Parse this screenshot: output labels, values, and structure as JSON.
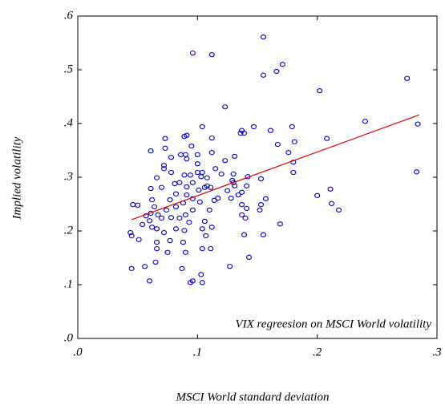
{
  "chart_data": {
    "type": "scatter",
    "annotation": "VIX regreesion on MSCI World volatility",
    "x_label": "MSCI World standard deviation",
    "y_label": "Implied volatility",
    "xlim": [
      0,
      0.3
    ],
    "ylim": [
      0,
      0.6
    ],
    "xticks": [
      {
        "value": 0,
        "label": ".0"
      },
      {
        "value": 0.1,
        "label": ".1"
      },
      {
        "value": 0.2,
        "label": ".2"
      },
      {
        "value": 0.3,
        "label": ".3"
      }
    ],
    "yticks": [
      {
        "value": 0,
        "label": ".0"
      },
      {
        "value": 0.1,
        "label": ".1"
      },
      {
        "value": 0.2,
        "label": ".2"
      },
      {
        "value": 0.3,
        "label": ".3"
      },
      {
        "value": 0.4,
        "label": ".4"
      },
      {
        "value": 0.5,
        "label": ".5"
      },
      {
        "value": 0.6,
        "label": ".6"
      }
    ],
    "grid": false,
    "color": "#0000cc",
    "x": [
      0.096,
      0.112,
      0.155,
      0.171,
      0.166,
      0.155,
      0.202,
      0.275,
      0.123,
      0.24,
      0.284,
      0.104,
      0.137,
      0.147,
      0.179,
      0.161,
      0.136,
      0.139,
      0.073,
      0.112,
      0.208,
      0.089,
      0.091,
      0.167,
      0.181,
      0.095,
      0.061,
      0.073,
      0.176,
      0.086,
      0.09,
      0.1,
      0.112,
      0.131,
      0.078,
      0.072,
      0.091,
      0.18,
      0.1,
      0.123,
      0.18,
      0.283,
      0.072,
      0.078,
      0.089,
      0.094,
      0.1,
      0.103,
      0.104,
      0.115,
      0.12,
      0.13,
      0.142,
      0.153,
      0.108,
      0.066,
      0.081,
      0.085,
      0.096,
      0.129,
      0.13,
      0.131,
      0.141,
      0.07,
      0.091,
      0.106,
      0.108,
      0.111,
      0.061,
      0.101,
      0.082,
      0.091,
      0.125,
      0.134,
      0.137,
      0.117,
      0.128,
      0.096,
      0.062,
      0.077,
      0.114,
      0.088,
      0.102,
      0.211,
      0.2,
      0.212,
      0.218,
      0.157,
      0.153,
      0.152,
      0.137,
      0.141,
      0.046,
      0.05,
      0.064,
      0.074,
      0.082,
      0.096,
      0.11,
      0.061,
      0.067,
      0.057,
      0.09,
      0.137,
      0.07,
      0.078,
      0.14,
      0.085,
      0.106,
      0.093,
      0.169,
      0.06,
      0.054,
      0.112,
      0.062,
      0.104,
      0.082,
      0.066,
      0.089,
      0.044,
      0.045,
      0.072,
      0.139,
      0.155,
      0.107,
      0.051,
      0.077,
      0.088,
      0.066,
      0.066,
      0.104,
      0.111,
      0.075,
      0.09,
      0.143,
      0.065,
      0.127,
      0.045,
      0.056,
      0.087,
      0.103,
      0.096,
      0.094,
      0.06,
      0.104
    ],
    "y": [
      0.531,
      0.528,
      0.561,
      0.51,
      0.497,
      0.49,
      0.461,
      0.484,
      0.431,
      0.404,
      0.399,
      0.394,
      0.387,
      0.394,
      0.394,
      0.387,
      0.382,
      0.382,
      0.372,
      0.373,
      0.372,
      0.376,
      0.378,
      0.361,
      0.366,
      0.358,
      0.349,
      0.354,
      0.346,
      0.342,
      0.342,
      0.342,
      0.346,
      0.339,
      0.337,
      0.322,
      0.334,
      0.328,
      0.325,
      0.331,
      0.309,
      0.31,
      0.316,
      0.309,
      0.304,
      0.304,
      0.309,
      0.301,
      0.309,
      0.316,
      0.306,
      0.306,
      0.301,
      0.297,
      0.299,
      0.299,
      0.288,
      0.29,
      0.29,
      0.294,
      0.29,
      0.284,
      0.284,
      0.281,
      0.282,
      0.281,
      0.284,
      0.281,
      0.279,
      0.276,
      0.269,
      0.267,
      0.275,
      0.267,
      0.272,
      0.261,
      0.261,
      0.26,
      0.258,
      0.258,
      0.257,
      0.252,
      0.254,
      0.278,
      0.266,
      0.251,
      0.239,
      0.26,
      0.249,
      0.239,
      0.249,
      0.242,
      0.249,
      0.248,
      0.245,
      0.239,
      0.245,
      0.239,
      0.239,
      0.233,
      0.23,
      0.228,
      0.23,
      0.23,
      0.224,
      0.225,
      0.224,
      0.224,
      0.218,
      0.216,
      0.213,
      0.219,
      0.212,
      0.207,
      0.207,
      0.204,
      0.204,
      0.204,
      0.201,
      0.197,
      0.191,
      0.197,
      0.193,
      0.193,
      0.191,
      0.184,
      0.182,
      0.179,
      0.179,
      0.167,
      0.167,
      0.167,
      0.16,
      0.16,
      0.151,
      0.142,
      0.134,
      0.13,
      0.134,
      0.13,
      0.119,
      0.107,
      0.104,
      0.107,
      0.104
    ],
    "fit_line": {
      "color": "#e00000",
      "x": [
        0.045,
        0.285
      ],
      "y": [
        0.221,
        0.416
      ]
    }
  }
}
